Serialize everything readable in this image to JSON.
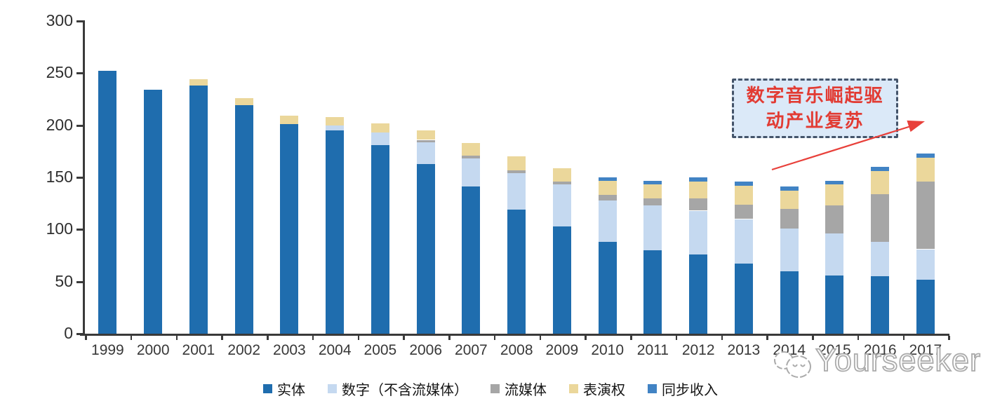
{
  "chart_data": {
    "type": "bar",
    "stacked": true,
    "title": "",
    "xlabel": "",
    "ylabel": "",
    "categories": [
      "1999",
      "2000",
      "2001",
      "2002",
      "2003",
      "2004",
      "2005",
      "2006",
      "2007",
      "2008",
      "2009",
      "2010",
      "2011",
      "2012",
      "2013",
      "2014",
      "2015",
      "2016",
      "2017"
    ],
    "series": [
      {
        "name": "实体",
        "color": "#1F6DAE",
        "values": [
          252,
          234,
          238,
          219,
          201,
          195,
          181,
          163,
          141,
          119,
          103,
          88,
          80,
          76,
          67,
          60,
          56,
          55,
          52
        ]
      },
      {
        "name": "数字（不含流媒体）",
        "color": "#C5D9F0",
        "values": [
          0,
          0,
          0,
          0,
          0,
          5,
          12,
          21,
          27,
          35,
          40,
          40,
          43,
          42,
          43,
          41,
          40,
          33,
          29
        ]
      },
      {
        "name": "流媒体",
        "color": "#A6A6A6",
        "values": [
          0,
          0,
          0,
          0,
          0,
          0,
          0,
          2,
          3,
          3,
          3,
          5,
          7,
          12,
          14,
          19,
          27,
          46,
          65
        ]
      },
      {
        "name": "表演权",
        "color": "#EBD79B",
        "values": [
          0,
          0,
          6,
          7,
          8,
          8,
          9,
          9,
          12,
          13,
          13,
          14,
          13,
          16,
          18,
          17,
          20,
          22,
          23
        ]
      },
      {
        "name": "同步收入",
        "color": "#4183C4",
        "values": [
          0,
          0,
          0,
          0,
          0,
          0,
          0,
          0,
          0,
          0,
          0,
          3,
          4,
          4,
          4,
          4,
          4,
          4,
          4
        ]
      }
    ],
    "ylim": [
      0,
      300
    ],
    "yticks": [
      0,
      50,
      100,
      150,
      200,
      250,
      300
    ],
    "grid": false,
    "legend_position": "bottom",
    "axis_color": "#3A3A3A"
  },
  "annotation": {
    "line1": "数字音乐崛起驱",
    "line2": "动产业复苏",
    "box_fill": "#DBE9F8",
    "border_color": "#44546A",
    "text_color": "#E23B33",
    "arrow_color": "#E8403A"
  },
  "watermark": {
    "text": "Yourseeker",
    "color": "#ABABAB"
  }
}
